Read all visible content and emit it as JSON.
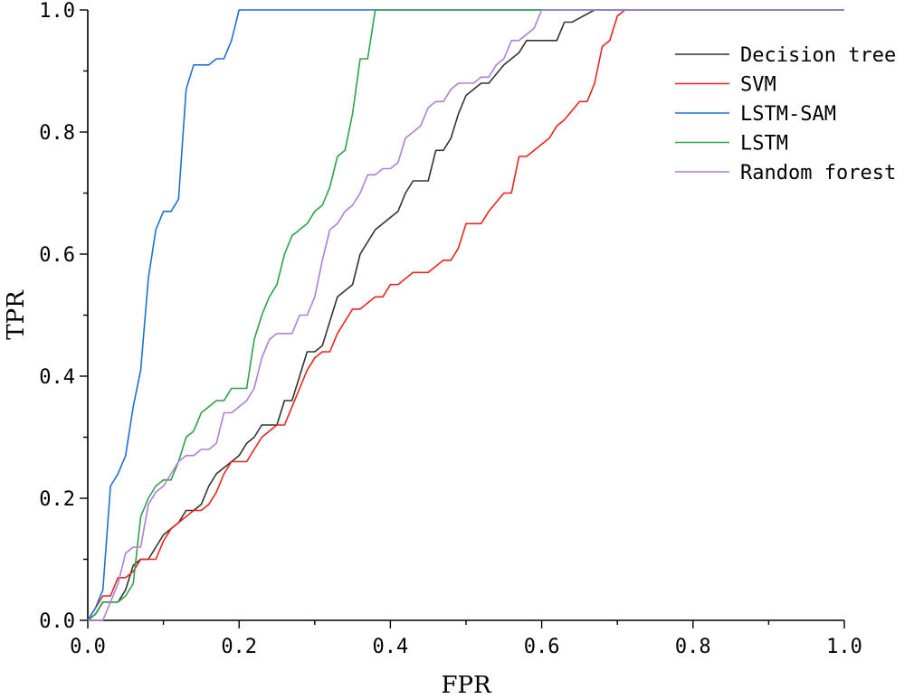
{
  "chart_data": {
    "type": "line",
    "title": "",
    "xlabel": "FPR",
    "ylabel": "TPR",
    "xlim": [
      0,
      1
    ],
    "ylim": [
      0,
      1
    ],
    "xticks": [
      "0.0",
      "0.2",
      "0.4",
      "0.6",
      "0.8",
      "1.0"
    ],
    "yticks": [
      "0.0",
      "0.2",
      "0.4",
      "0.6",
      "0.8",
      "1.0"
    ],
    "grid": false,
    "legend_position": "top-right",
    "series": [
      {
        "name": "Decision tree",
        "color": "#333333",
        "points": [
          [
            0,
            0
          ],
          [
            0.01,
            0.01
          ],
          [
            0.02,
            0.03
          ],
          [
            0.04,
            0.03
          ],
          [
            0.05,
            0.05
          ],
          [
            0.06,
            0.09
          ],
          [
            0.07,
            0.1
          ],
          [
            0.08,
            0.1
          ],
          [
            0.1,
            0.14
          ],
          [
            0.12,
            0.16
          ],
          [
            0.13,
            0.18
          ],
          [
            0.14,
            0.18
          ],
          [
            0.15,
            0.19
          ],
          [
            0.16,
            0.22
          ],
          [
            0.17,
            0.24
          ],
          [
            0.19,
            0.26
          ],
          [
            0.2,
            0.27
          ],
          [
            0.21,
            0.29
          ],
          [
            0.22,
            0.3
          ],
          [
            0.23,
            0.32
          ],
          [
            0.25,
            0.32
          ],
          [
            0.26,
            0.36
          ],
          [
            0.27,
            0.36
          ],
          [
            0.28,
            0.4
          ],
          [
            0.29,
            0.44
          ],
          [
            0.3,
            0.44
          ],
          [
            0.31,
            0.45
          ],
          [
            0.32,
            0.49
          ],
          [
            0.33,
            0.53
          ],
          [
            0.34,
            0.54
          ],
          [
            0.35,
            0.55
          ],
          [
            0.36,
            0.6
          ],
          [
            0.37,
            0.62
          ],
          [
            0.38,
            0.64
          ],
          [
            0.4,
            0.66
          ],
          [
            0.41,
            0.67
          ],
          [
            0.42,
            0.7
          ],
          [
            0.43,
            0.72
          ],
          [
            0.45,
            0.72
          ],
          [
            0.46,
            0.77
          ],
          [
            0.47,
            0.77
          ],
          [
            0.48,
            0.79
          ],
          [
            0.49,
            0.83
          ],
          [
            0.5,
            0.86
          ],
          [
            0.52,
            0.88
          ],
          [
            0.53,
            0.88
          ],
          [
            0.55,
            0.91
          ],
          [
            0.57,
            0.93
          ],
          [
            0.58,
            0.95
          ],
          [
            0.62,
            0.95
          ],
          [
            0.63,
            0.98
          ],
          [
            0.64,
            0.98
          ],
          [
            0.67,
            1.0
          ],
          [
            1.0,
            1.0
          ]
        ]
      },
      {
        "name": "SVM",
        "color": "#e8251f",
        "points": [
          [
            0,
            0
          ],
          [
            0.01,
            0.02
          ],
          [
            0.02,
            0.04
          ],
          [
            0.03,
            0.04
          ],
          [
            0.04,
            0.07
          ],
          [
            0.05,
            0.07
          ],
          [
            0.06,
            0.08
          ],
          [
            0.07,
            0.1
          ],
          [
            0.09,
            0.1
          ],
          [
            0.1,
            0.13
          ],
          [
            0.11,
            0.15
          ],
          [
            0.12,
            0.16
          ],
          [
            0.13,
            0.17
          ],
          [
            0.14,
            0.18
          ],
          [
            0.15,
            0.18
          ],
          [
            0.16,
            0.19
          ],
          [
            0.17,
            0.21
          ],
          [
            0.18,
            0.24
          ],
          [
            0.19,
            0.26
          ],
          [
            0.21,
            0.26
          ],
          [
            0.22,
            0.28
          ],
          [
            0.23,
            0.3
          ],
          [
            0.25,
            0.32
          ],
          [
            0.26,
            0.32
          ],
          [
            0.27,
            0.35
          ],
          [
            0.28,
            0.38
          ],
          [
            0.29,
            0.41
          ],
          [
            0.3,
            0.43
          ],
          [
            0.31,
            0.44
          ],
          [
            0.32,
            0.44
          ],
          [
            0.33,
            0.47
          ],
          [
            0.34,
            0.49
          ],
          [
            0.35,
            0.51
          ],
          [
            0.36,
            0.51
          ],
          [
            0.38,
            0.53
          ],
          [
            0.39,
            0.53
          ],
          [
            0.4,
            0.55
          ],
          [
            0.41,
            0.55
          ],
          [
            0.43,
            0.57
          ],
          [
            0.45,
            0.57
          ],
          [
            0.47,
            0.59
          ],
          [
            0.48,
            0.59
          ],
          [
            0.49,
            0.61
          ],
          [
            0.5,
            0.65
          ],
          [
            0.52,
            0.65
          ],
          [
            0.53,
            0.67
          ],
          [
            0.55,
            0.7
          ],
          [
            0.56,
            0.7
          ],
          [
            0.57,
            0.76
          ],
          [
            0.58,
            0.76
          ],
          [
            0.61,
            0.79
          ],
          [
            0.62,
            0.81
          ],
          [
            0.63,
            0.82
          ],
          [
            0.65,
            0.85
          ],
          [
            0.66,
            0.85
          ],
          [
            0.67,
            0.88
          ],
          [
            0.68,
            0.94
          ],
          [
            0.69,
            0.95
          ],
          [
            0.7,
            0.99
          ],
          [
            0.71,
            1.0
          ],
          [
            1.0,
            1.0
          ]
        ]
      },
      {
        "name": "LSTM-SAM",
        "color": "#1f6fd6",
        "points": [
          [
            0,
            0
          ],
          [
            0.01,
            0.02
          ],
          [
            0.02,
            0.05
          ],
          [
            0.03,
            0.22
          ],
          [
            0.04,
            0.24
          ],
          [
            0.05,
            0.27
          ],
          [
            0.06,
            0.35
          ],
          [
            0.07,
            0.41
          ],
          [
            0.08,
            0.56
          ],
          [
            0.09,
            0.64
          ],
          [
            0.1,
            0.67
          ],
          [
            0.11,
            0.67
          ],
          [
            0.12,
            0.69
          ],
          [
            0.13,
            0.87
          ],
          [
            0.14,
            0.91
          ],
          [
            0.16,
            0.91
          ],
          [
            0.17,
            0.92
          ],
          [
            0.18,
            0.92
          ],
          [
            0.19,
            0.95
          ],
          [
            0.2,
            1.0
          ],
          [
            1.0,
            1.0
          ]
        ]
      },
      {
        "name": "LSTM",
        "color": "#2ca24a",
        "points": [
          [
            0,
            0
          ],
          [
            0.01,
            0.01
          ],
          [
            0.02,
            0.03
          ],
          [
            0.04,
            0.03
          ],
          [
            0.05,
            0.04
          ],
          [
            0.06,
            0.06
          ],
          [
            0.07,
            0.17
          ],
          [
            0.08,
            0.2
          ],
          [
            0.09,
            0.22
          ],
          [
            0.1,
            0.23
          ],
          [
            0.11,
            0.23
          ],
          [
            0.12,
            0.26
          ],
          [
            0.13,
            0.3
          ],
          [
            0.14,
            0.31
          ],
          [
            0.15,
            0.34
          ],
          [
            0.17,
            0.36
          ],
          [
            0.18,
            0.36
          ],
          [
            0.19,
            0.38
          ],
          [
            0.21,
            0.38
          ],
          [
            0.22,
            0.46
          ],
          [
            0.23,
            0.5
          ],
          [
            0.24,
            0.53
          ],
          [
            0.25,
            0.55
          ],
          [
            0.26,
            0.6
          ],
          [
            0.27,
            0.63
          ],
          [
            0.29,
            0.65
          ],
          [
            0.3,
            0.67
          ],
          [
            0.31,
            0.68
          ],
          [
            0.32,
            0.71
          ],
          [
            0.33,
            0.76
          ],
          [
            0.34,
            0.77
          ],
          [
            0.35,
            0.83
          ],
          [
            0.36,
            0.92
          ],
          [
            0.37,
            0.92
          ],
          [
            0.38,
            1.0
          ],
          [
            1.0,
            1.0
          ]
        ]
      },
      {
        "name": "Random forest",
        "color": "#b07ed8",
        "points": [
          [
            0,
            0
          ],
          [
            0.02,
            0.0
          ],
          [
            0.03,
            0.03
          ],
          [
            0.04,
            0.06
          ],
          [
            0.05,
            0.11
          ],
          [
            0.06,
            0.12
          ],
          [
            0.07,
            0.12
          ],
          [
            0.08,
            0.19
          ],
          [
            0.09,
            0.21
          ],
          [
            0.1,
            0.22
          ],
          [
            0.11,
            0.24
          ],
          [
            0.12,
            0.26
          ],
          [
            0.13,
            0.27
          ],
          [
            0.14,
            0.27
          ],
          [
            0.15,
            0.28
          ],
          [
            0.16,
            0.28
          ],
          [
            0.17,
            0.29
          ],
          [
            0.18,
            0.34
          ],
          [
            0.19,
            0.34
          ],
          [
            0.2,
            0.35
          ],
          [
            0.21,
            0.36
          ],
          [
            0.22,
            0.38
          ],
          [
            0.23,
            0.43
          ],
          [
            0.24,
            0.46
          ],
          [
            0.25,
            0.47
          ],
          [
            0.27,
            0.47
          ],
          [
            0.28,
            0.5
          ],
          [
            0.29,
            0.5
          ],
          [
            0.3,
            0.53
          ],
          [
            0.31,
            0.59
          ],
          [
            0.32,
            0.64
          ],
          [
            0.33,
            0.65
          ],
          [
            0.34,
            0.67
          ],
          [
            0.35,
            0.68
          ],
          [
            0.36,
            0.7
          ],
          [
            0.37,
            0.73
          ],
          [
            0.38,
            0.73
          ],
          [
            0.39,
            0.74
          ],
          [
            0.4,
            0.74
          ],
          [
            0.41,
            0.75
          ],
          [
            0.42,
            0.79
          ],
          [
            0.43,
            0.8
          ],
          [
            0.44,
            0.81
          ],
          [
            0.45,
            0.84
          ],
          [
            0.46,
            0.85
          ],
          [
            0.47,
            0.85
          ],
          [
            0.48,
            0.87
          ],
          [
            0.49,
            0.88
          ],
          [
            0.51,
            0.88
          ],
          [
            0.52,
            0.89
          ],
          [
            0.53,
            0.89
          ],
          [
            0.54,
            0.91
          ],
          [
            0.55,
            0.92
          ],
          [
            0.56,
            0.95
          ],
          [
            0.57,
            0.95
          ],
          [
            0.58,
            0.96
          ],
          [
            0.59,
            0.97
          ],
          [
            0.6,
            1.0
          ],
          [
            1.0,
            1.0
          ]
        ]
      }
    ]
  }
}
